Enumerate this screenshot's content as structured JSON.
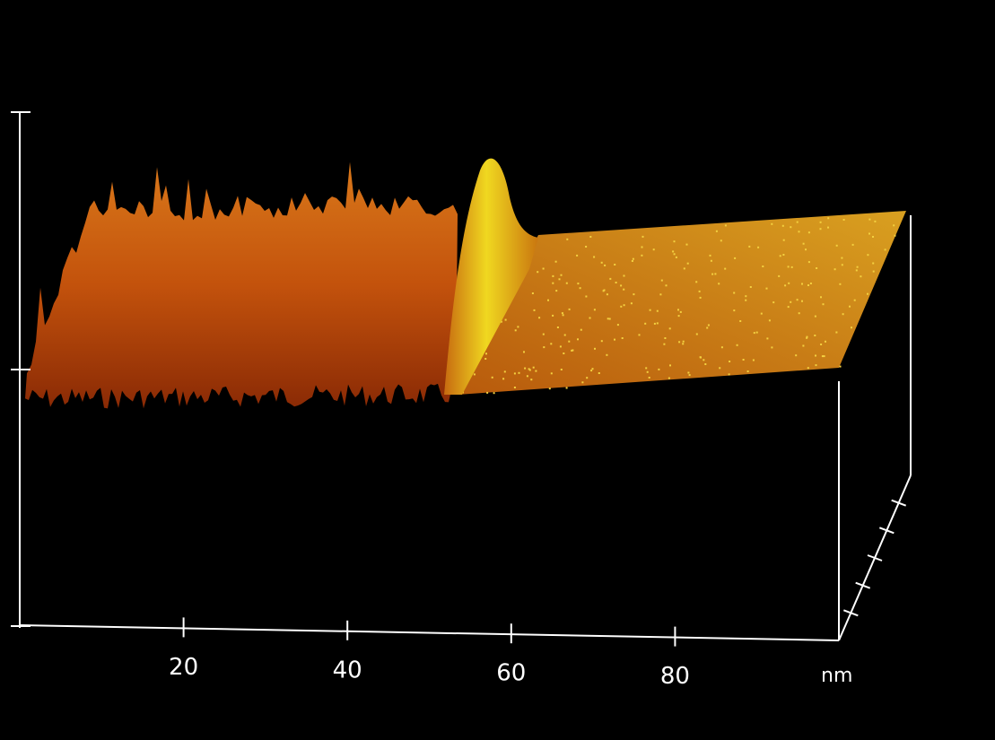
{
  "chart_data": {
    "type": "surface3d",
    "xlim": [
      0,
      100
    ],
    "xticks": [
      20,
      40,
      60,
      80
    ],
    "x_label": "nm"
  }
}
